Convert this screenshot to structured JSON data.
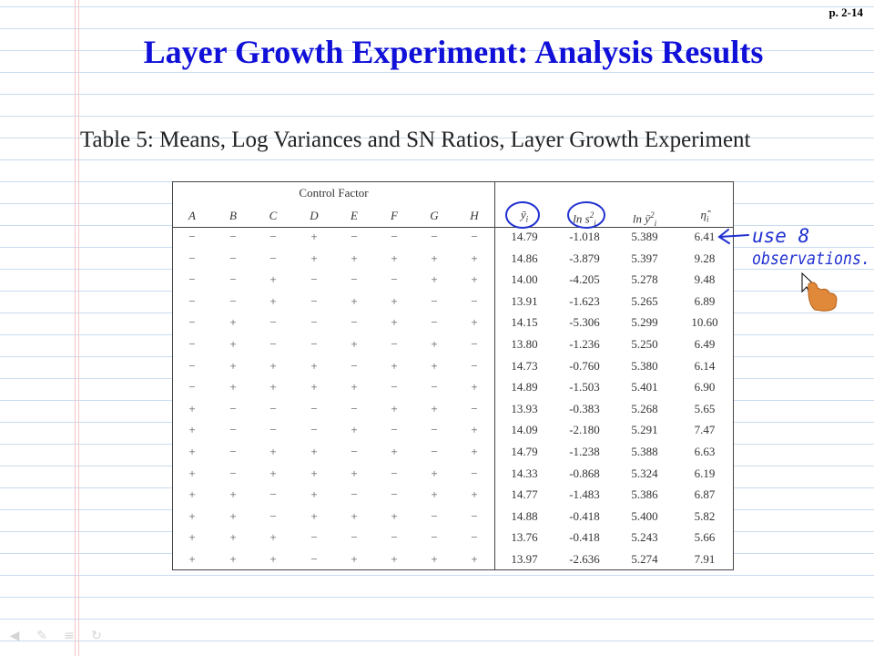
{
  "page_number": "p. 2-14",
  "title": "Layer Growth Experiment: Analysis Results",
  "caption": "Table 5: Means, Log Variances and SN Ratios, Layer Growth Experiment",
  "table": {
    "group_header": "Control Factor",
    "factor_headers": [
      "A",
      "B",
      "C",
      "D",
      "E",
      "F",
      "G",
      "H"
    ],
    "stat_headers": [
      "ȳ",
      "ln s",
      "ln ȳ",
      "η̂"
    ],
    "stat_subscript": "i",
    "stat_superscript": "2",
    "rows": [
      {
        "factors": [
          "−",
          "−",
          "−",
          "+",
          "−",
          "−",
          "−",
          "−"
        ],
        "stats": [
          "14.79",
          "-1.018",
          "5.389",
          "6.41"
        ]
      },
      {
        "factors": [
          "−",
          "−",
          "−",
          "+",
          "+",
          "+",
          "+",
          "+"
        ],
        "stats": [
          "14.86",
          "-3.879",
          "5.397",
          "9.28"
        ]
      },
      {
        "factors": [
          "−",
          "−",
          "+",
          "−",
          "−",
          "−",
          "+",
          "+"
        ],
        "stats": [
          "14.00",
          "-4.205",
          "5.278",
          "9.48"
        ]
      },
      {
        "factors": [
          "−",
          "−",
          "+",
          "−",
          "+",
          "+",
          "−",
          "−"
        ],
        "stats": [
          "13.91",
          "-1.623",
          "5.265",
          "6.89"
        ]
      },
      {
        "factors": [
          "−",
          "+",
          "−",
          "−",
          "−",
          "+",
          "−",
          "+"
        ],
        "stats": [
          "14.15",
          "-5.306",
          "5.299",
          "10.60"
        ]
      },
      {
        "factors": [
          "−",
          "+",
          "−",
          "−",
          "+",
          "−",
          "+",
          "−"
        ],
        "stats": [
          "13.80",
          "-1.236",
          "5.250",
          "6.49"
        ]
      },
      {
        "factors": [
          "−",
          "+",
          "+",
          "+",
          "−",
          "+",
          "+",
          "−"
        ],
        "stats": [
          "14.73",
          "-0.760",
          "5.380",
          "6.14"
        ]
      },
      {
        "factors": [
          "−",
          "+",
          "+",
          "+",
          "+",
          "−",
          "−",
          "+"
        ],
        "stats": [
          "14.89",
          "-1.503",
          "5.401",
          "6.90"
        ]
      },
      {
        "factors": [
          "+",
          "−",
          "−",
          "−",
          "−",
          "+",
          "+",
          "−"
        ],
        "stats": [
          "13.93",
          "-0.383",
          "5.268",
          "5.65"
        ]
      },
      {
        "factors": [
          "+",
          "−",
          "−",
          "−",
          "+",
          "−",
          "−",
          "+"
        ],
        "stats": [
          "14.09",
          "-2.180",
          "5.291",
          "7.47"
        ]
      },
      {
        "factors": [
          "+",
          "−",
          "+",
          "+",
          "−",
          "+",
          "−",
          "+"
        ],
        "stats": [
          "14.79",
          "-1.238",
          "5.388",
          "6.63"
        ]
      },
      {
        "factors": [
          "+",
          "−",
          "+",
          "+",
          "+",
          "−",
          "+",
          "−"
        ],
        "stats": [
          "14.33",
          "-0.868",
          "5.324",
          "6.19"
        ]
      },
      {
        "factors": [
          "+",
          "+",
          "−",
          "+",
          "−",
          "−",
          "+",
          "+"
        ],
        "stats": [
          "14.77",
          "-1.483",
          "5.386",
          "6.87"
        ]
      },
      {
        "factors": [
          "+",
          "+",
          "−",
          "+",
          "+",
          "+",
          "−",
          "−"
        ],
        "stats": [
          "14.88",
          "-0.418",
          "5.400",
          "5.82"
        ]
      },
      {
        "factors": [
          "+",
          "+",
          "+",
          "−",
          "−",
          "−",
          "−",
          "−"
        ],
        "stats": [
          "13.76",
          "-0.418",
          "5.243",
          "5.66"
        ]
      },
      {
        "factors": [
          "+",
          "+",
          "+",
          "−",
          "+",
          "+",
          "+",
          "+"
        ],
        "stats": [
          "13.97",
          "-2.636",
          "5.274",
          "7.91"
        ]
      }
    ]
  },
  "annotation": {
    "line1": "use 8",
    "line2": "observations.",
    "ink_color": "#2030d0"
  },
  "colors": {
    "title": "#1010d8",
    "rule_line": "#c9dcef",
    "margin_line": "#f3c7c7"
  },
  "nav_icons": [
    "arrow-left-icon",
    "pen-icon",
    "menu-icon",
    "loop-icon"
  ]
}
